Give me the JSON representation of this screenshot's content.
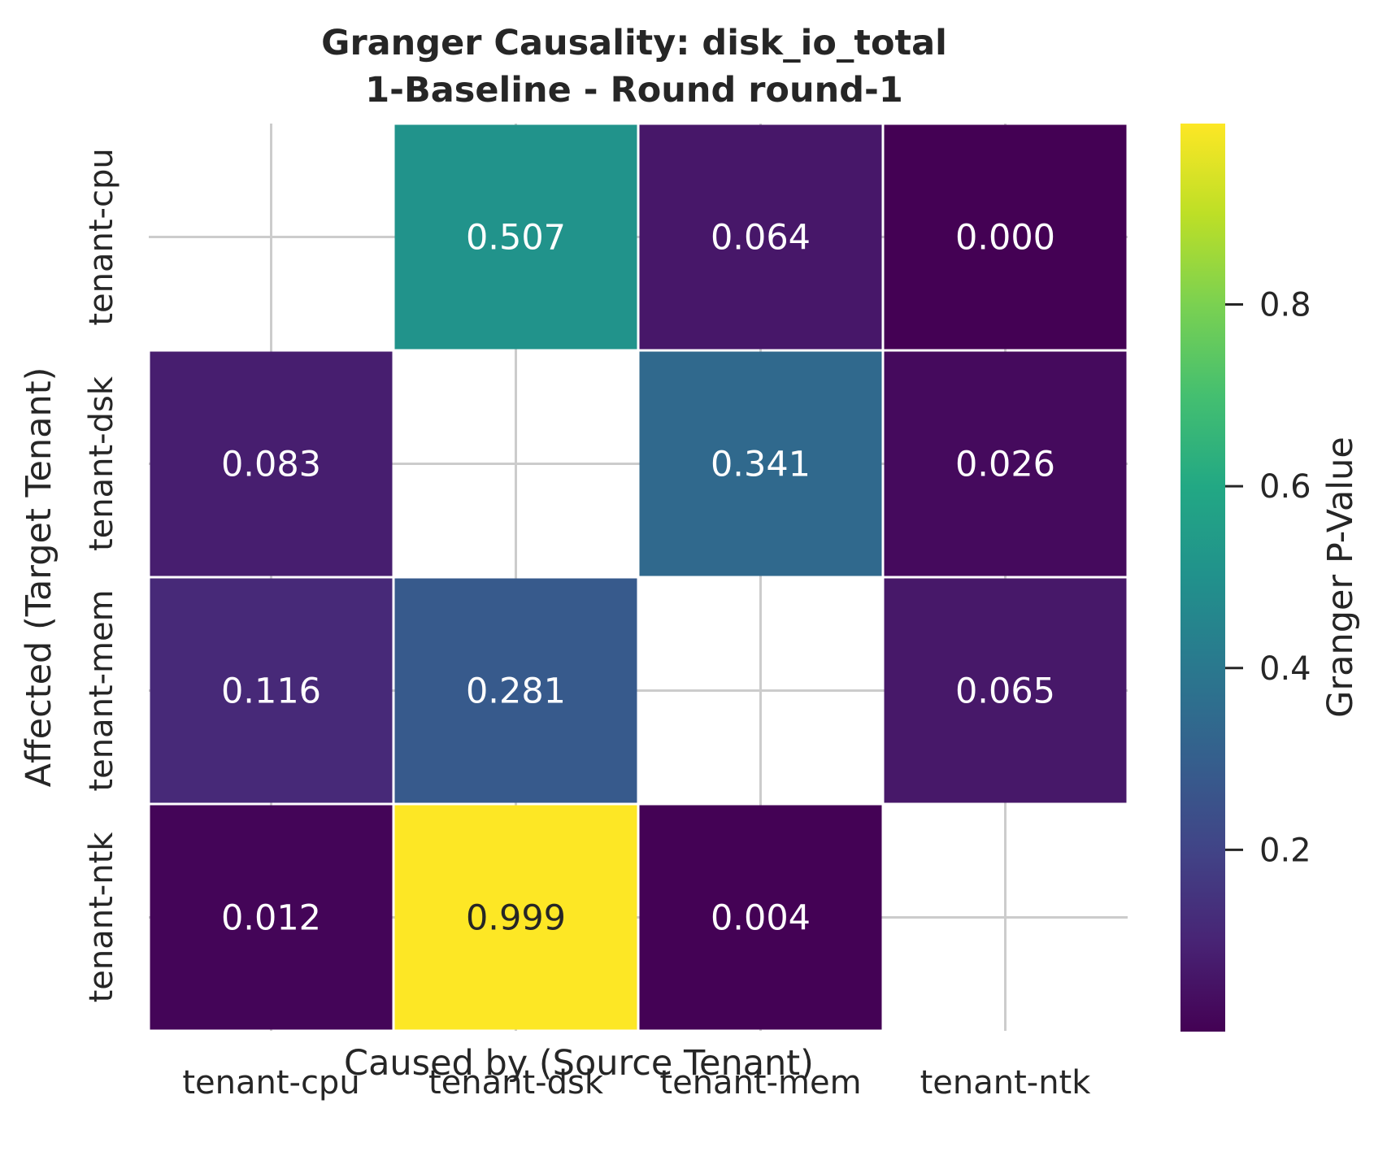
{
  "chart_data": {
    "type": "heatmap",
    "title_lines": [
      "Granger Causality: disk_io_total",
      "1-Baseline - Round round-1"
    ],
    "xlabel": "Caused by (Source Tenant)",
    "ylabel": "Affected (Target Tenant)",
    "x_categories": [
      "tenant-cpu",
      "tenant-dsk",
      "tenant-mem",
      "tenant-ntk"
    ],
    "y_categories": [
      "tenant-cpu",
      "tenant-dsk",
      "tenant-mem",
      "tenant-ntk"
    ],
    "values": [
      [
        null,
        0.507,
        0.064,
        0.0
      ],
      [
        0.083,
        null,
        0.341,
        0.026
      ],
      [
        0.116,
        0.281,
        null,
        0.065
      ],
      [
        0.012,
        0.999,
        0.004,
        null
      ]
    ],
    "value_labels": [
      [
        "",
        "0.507",
        "0.064",
        "0.000"
      ],
      [
        "0.083",
        "",
        "0.341",
        "0.026"
      ],
      [
        "0.116",
        "0.281",
        "",
        "0.065"
      ],
      [
        "0.012",
        "0.999",
        "0.004",
        ""
      ]
    ],
    "colormap": "viridis",
    "colorbar": {
      "label": "Granger P-Value",
      "range": [
        0.0,
        0.999
      ],
      "ticks": [
        0.2,
        0.4,
        0.6,
        0.8
      ],
      "tick_labels": [
        "0.2",
        "0.4",
        "0.6",
        "0.8"
      ]
    },
    "grid": true
  }
}
